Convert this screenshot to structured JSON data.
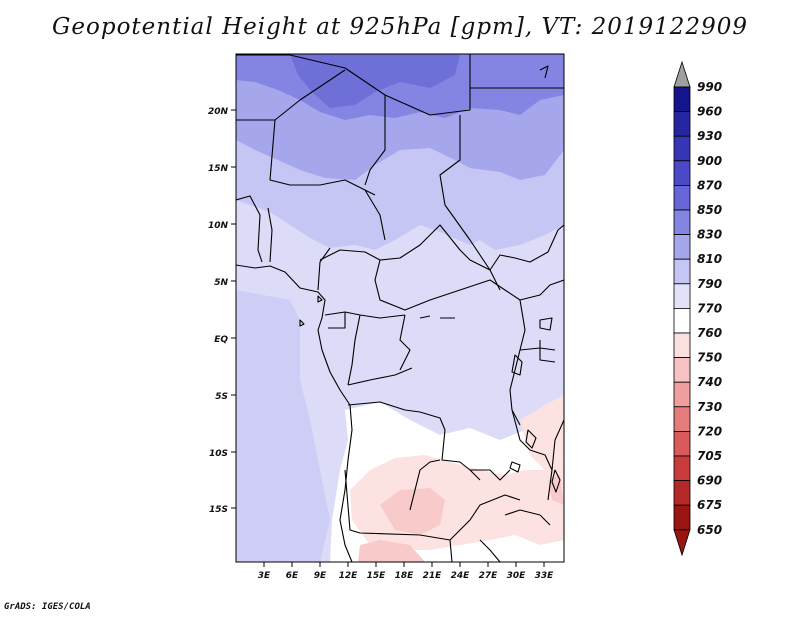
{
  "title": "Geopotential Height at 925hPa [gpm], VT: 2019122909",
  "footer": "GrADS: IGES/COLA",
  "map": {
    "lat_labels": [
      "20N",
      "15N",
      "10N",
      "5N",
      "EQ",
      "5S",
      "10S",
      "15S"
    ],
    "lon_labels": [
      "3E",
      "6E",
      "9E",
      "12E",
      "15E",
      "18E",
      "21E",
      "24E",
      "27E",
      "30E",
      "33E"
    ]
  },
  "colorbar": {
    "levels": [
      "990",
      "960",
      "930",
      "900",
      "870",
      "850",
      "830",
      "810",
      "790",
      "770",
      "760",
      "750",
      "740",
      "730",
      "720",
      "705",
      "690",
      "675",
      "650"
    ],
    "colors": {
      "c990": "#a0a0a0",
      "c960": "#14148c",
      "c930": "#2626a2",
      "c900": "#3636b4",
      "c870": "#4a4ac8",
      "c850": "#6666d8",
      "c830": "#8484e2",
      "c810": "#a6a6ec",
      "c790": "#c6c6f4",
      "c770": "#e2e2fa",
      "c760": "#ffffff",
      "c750": "#fce0e0",
      "c740": "#f6c2c2",
      "c730": "#ee9e9e",
      "c720": "#e47c7c",
      "c705": "#d85a5a",
      "c690": "#c83c3c",
      "c675": "#b42828",
      "c650": "#9a1414"
    }
  }
}
